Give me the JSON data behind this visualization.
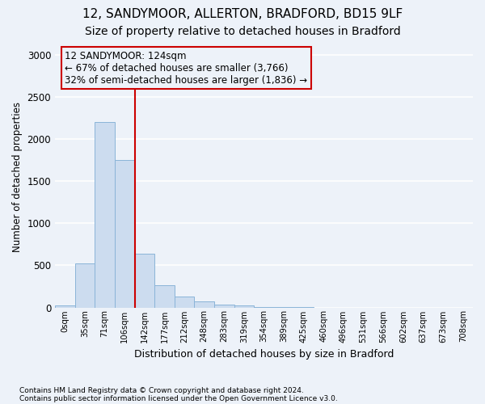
{
  "title1": "12, SANDYMOOR, ALLERTON, BRADFORD, BD15 9LF",
  "title2": "Size of property relative to detached houses in Bradford",
  "xlabel": "Distribution of detached houses by size in Bradford",
  "ylabel": "Number of detached properties",
  "footnote1": "Contains HM Land Registry data © Crown copyright and database right 2024.",
  "footnote2": "Contains public sector information licensed under the Open Government Licence v3.0.",
  "annotation_line1": "12 SANDYMOOR: 124sqm",
  "annotation_line2": "← 67% of detached houses are smaller (3,766)",
  "annotation_line3": "32% of semi-detached houses are larger (1,836) →",
  "property_size_bin": 3.5,
  "bar_labels": [
    "0sqm",
    "35sqm",
    "71sqm",
    "106sqm",
    "142sqm",
    "177sqm",
    "212sqm",
    "248sqm",
    "283sqm",
    "319sqm",
    "354sqm",
    "389sqm",
    "425sqm",
    "460sqm",
    "496sqm",
    "531sqm",
    "566sqm",
    "602sqm",
    "637sqm",
    "673sqm",
    "708sqm"
  ],
  "bar_heights": [
    25,
    520,
    2200,
    1750,
    640,
    260,
    130,
    75,
    35,
    20,
    5,
    2,
    1,
    0,
    0,
    0,
    0,
    0,
    0,
    0,
    0
  ],
  "bar_color": "#ccdcef",
  "bar_edgecolor": "#8ab4d8",
  "marker_color": "#cc0000",
  "ylim": [
    0,
    3100
  ],
  "yticks": [
    0,
    500,
    1000,
    1500,
    2000,
    2500,
    3000
  ],
  "annotation_box_color": "#cc0000",
  "background_color": "#edf2f9",
  "grid_color": "#ffffff",
  "title1_fontsize": 11,
  "title2_fontsize": 10
}
